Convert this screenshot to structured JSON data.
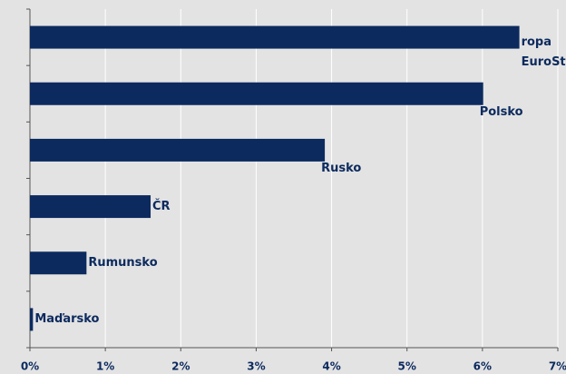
{
  "chart_data": {
    "type": "bar",
    "orientation": "horizontal",
    "categories": [
      "ropa EuroStoxx",
      "Polsko",
      "Rusko",
      "ČR",
      "Rumunsko",
      "Maďarsko"
    ],
    "values": [
      6.49,
      6.01,
      3.91,
      1.6,
      0.75,
      0.04
    ],
    "color": "#0c2a5e",
    "xlim": [
      0,
      7
    ],
    "xticks": [
      {
        "value": 0,
        "label": "0%"
      },
      {
        "value": 1,
        "label": "1%"
      },
      {
        "value": 2,
        "label": "2%"
      },
      {
        "value": 3,
        "label": "3%"
      },
      {
        "value": 4,
        "label": "4%"
      },
      {
        "value": 5,
        "label": "5%"
      },
      {
        "value": 6,
        "label": "6%"
      },
      {
        "value": 7,
        "label": "7%"
      }
    ],
    "grid": true
  }
}
